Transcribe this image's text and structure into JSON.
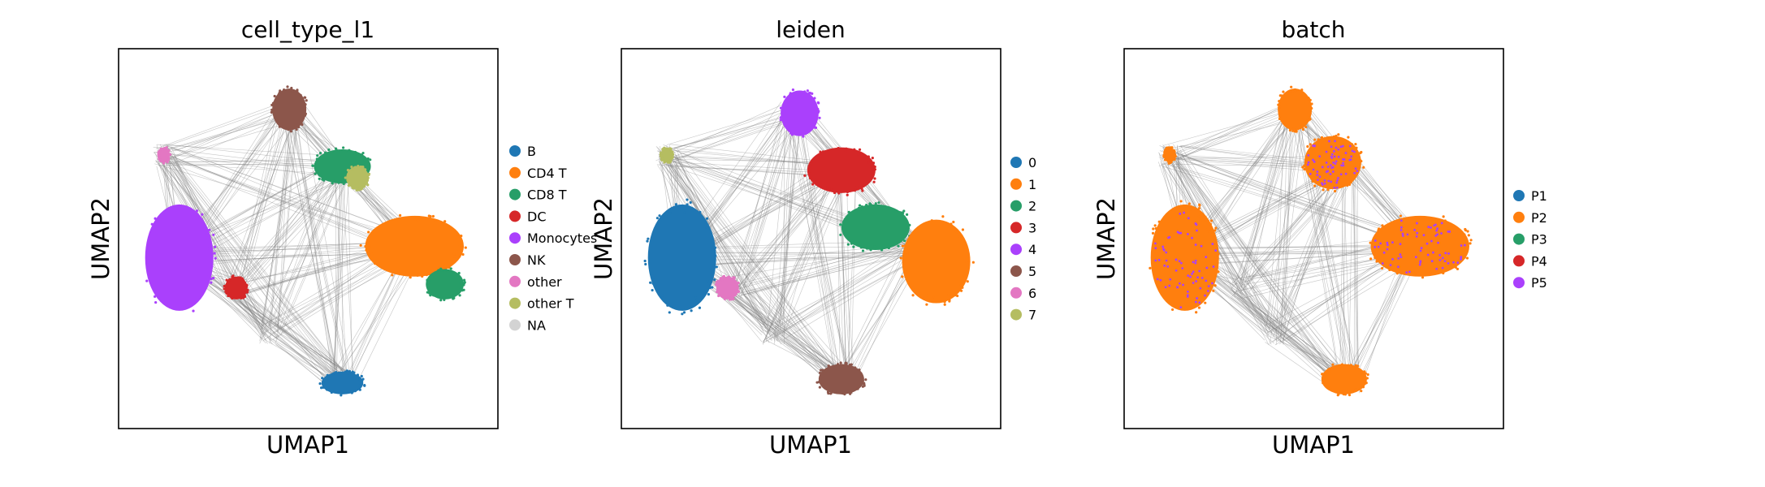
{
  "chart_data": [
    {
      "type": "scatter",
      "title": "cell_type_l1",
      "xlabel": "UMAP1",
      "ylabel": "UMAP2",
      "ticks": "none",
      "legend_position": "right",
      "series": [
        {
          "name": "B",
          "color": "#1f77b4"
        },
        {
          "name": "CD4 T",
          "color": "#ff7f0e"
        },
        {
          "name": "CD8 T",
          "color": "#279e68"
        },
        {
          "name": "DC",
          "color": "#d62728"
        },
        {
          "name": "Monocytes",
          "color": "#aa40fc"
        },
        {
          "name": "NK",
          "color": "#8c564b"
        },
        {
          "name": "other",
          "color": "#e377c2"
        },
        {
          "name": "other T",
          "color": "#b5bd61"
        },
        {
          "name": "NA",
          "color": "#d3d3d3"
        }
      ]
    },
    {
      "type": "scatter",
      "title": "leiden",
      "xlabel": "UMAP1",
      "ylabel": "UMAP2",
      "ticks": "none",
      "legend_position": "right",
      "series": [
        {
          "name": "0",
          "color": "#1f77b4"
        },
        {
          "name": "1",
          "color": "#ff7f0e"
        },
        {
          "name": "2",
          "color": "#279e68"
        },
        {
          "name": "3",
          "color": "#d62728"
        },
        {
          "name": "4",
          "color": "#aa40fc"
        },
        {
          "name": "5",
          "color": "#8c564b"
        },
        {
          "name": "6",
          "color": "#e377c2"
        },
        {
          "name": "7",
          "color": "#b5bd61"
        }
      ]
    },
    {
      "type": "scatter",
      "title": "batch",
      "xlabel": "UMAP1",
      "ylabel": "UMAP2",
      "ticks": "none",
      "legend_position": "right",
      "series": [
        {
          "name": "P1",
          "color": "#1f77b4"
        },
        {
          "name": "P2",
          "color": "#ff7f0e"
        },
        {
          "name": "P3",
          "color": "#279e68"
        },
        {
          "name": "P4",
          "color": "#d62728"
        },
        {
          "name": "P5",
          "color": "#aa40fc"
        }
      ]
    }
  ]
}
